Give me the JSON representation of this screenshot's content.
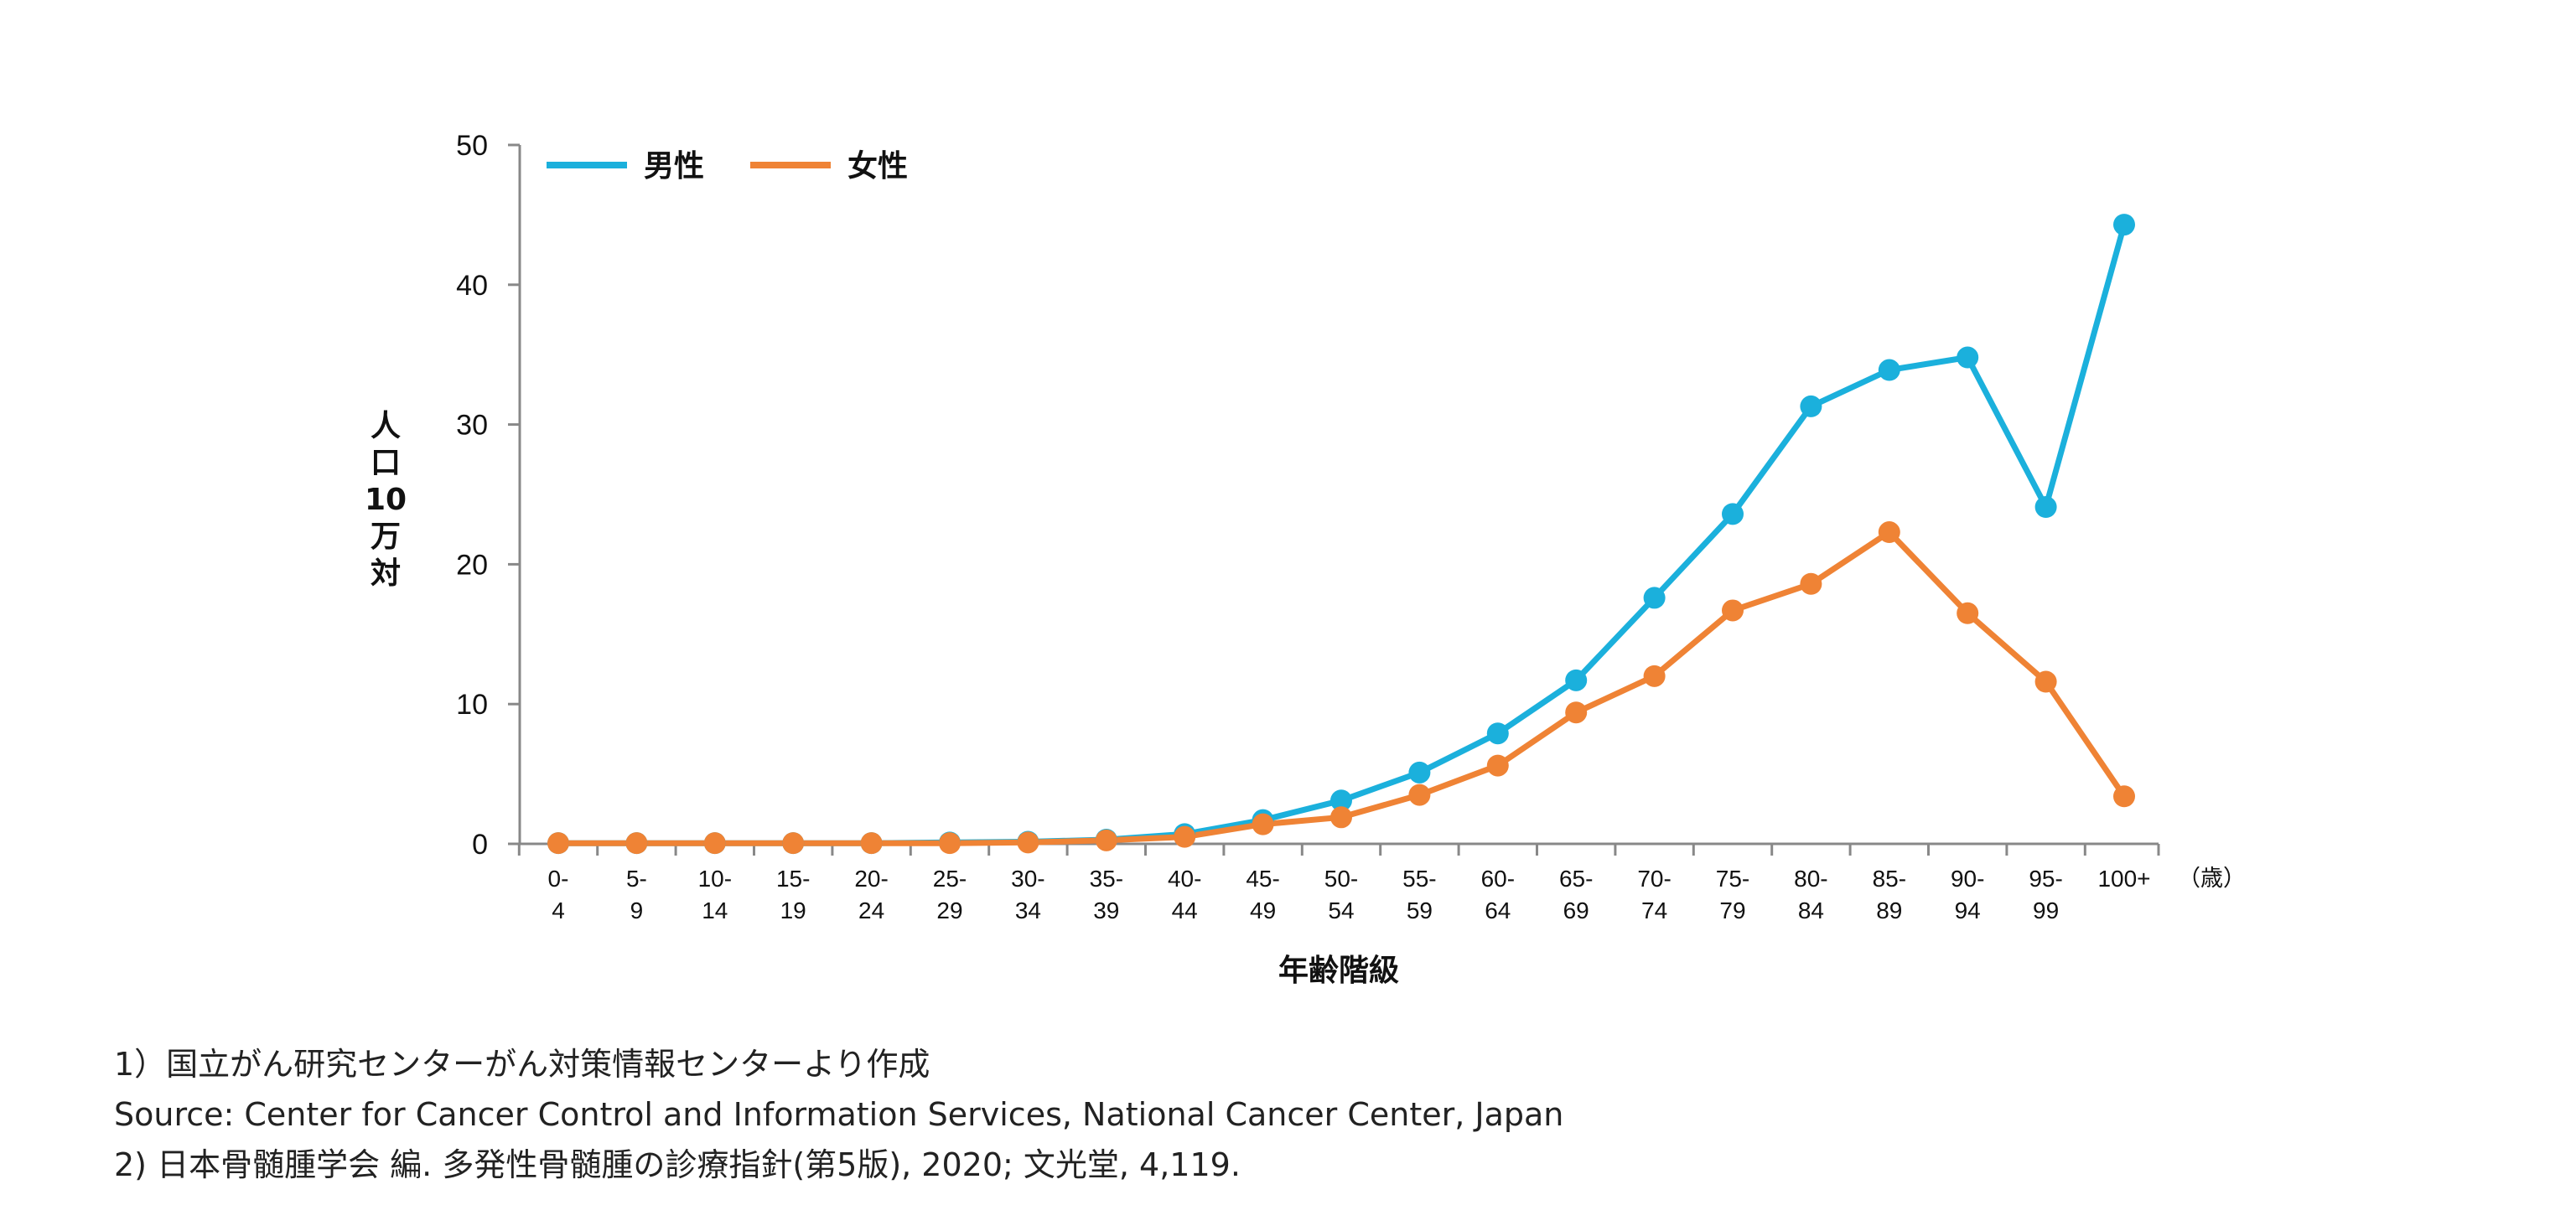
{
  "chart_data": {
    "type": "line",
    "title": "",
    "ylabel": "人口10万対",
    "xlabel": "年齢階級",
    "x_unit": "（歳）",
    "ylim": [
      0,
      50
    ],
    "yticks": [
      0,
      10,
      20,
      30,
      40,
      50
    ],
    "categories": [
      "0-4",
      "5-9",
      "10-14",
      "15-19",
      "20-24",
      "25-29",
      "30-34",
      "35-39",
      "40-44",
      "45-49",
      "50-54",
      "55-59",
      "60-64",
      "65-69",
      "70-74",
      "75-79",
      "80-84",
      "85-89",
      "90-94",
      "95-99",
      "100+"
    ],
    "legend_position": "top-left",
    "grid": false,
    "series": [
      {
        "name": "男性",
        "color": "#1bb0dc",
        "values": [
          0.05,
          0.05,
          0.05,
          0.05,
          0.05,
          0.1,
          0.15,
          0.3,
          0.7,
          1.7,
          3.1,
          5.1,
          7.9,
          11.7,
          17.6,
          23.6,
          31.3,
          33.9,
          34.8,
          24.1,
          44.3
        ]
      },
      {
        "name": "女性",
        "color": "#ef8335",
        "values": [
          0.05,
          0.05,
          0.05,
          0.05,
          0.05,
          0.05,
          0.1,
          0.25,
          0.5,
          1.4,
          1.9,
          3.5,
          5.6,
          9.4,
          12.0,
          16.7,
          18.6,
          22.3,
          16.5,
          11.6,
          3.4
        ]
      }
    ]
  },
  "notes": [
    "1）国立がん研究センターがん対策情報センターより作成",
    "Source: Center for Cancer Control and Information Services, National Cancer Center, Japan",
    "2) 日本骨髄腫学会 編. 多発性骨髄腫の診療指針(第5版), 2020; 文光堂, 4,119."
  ]
}
